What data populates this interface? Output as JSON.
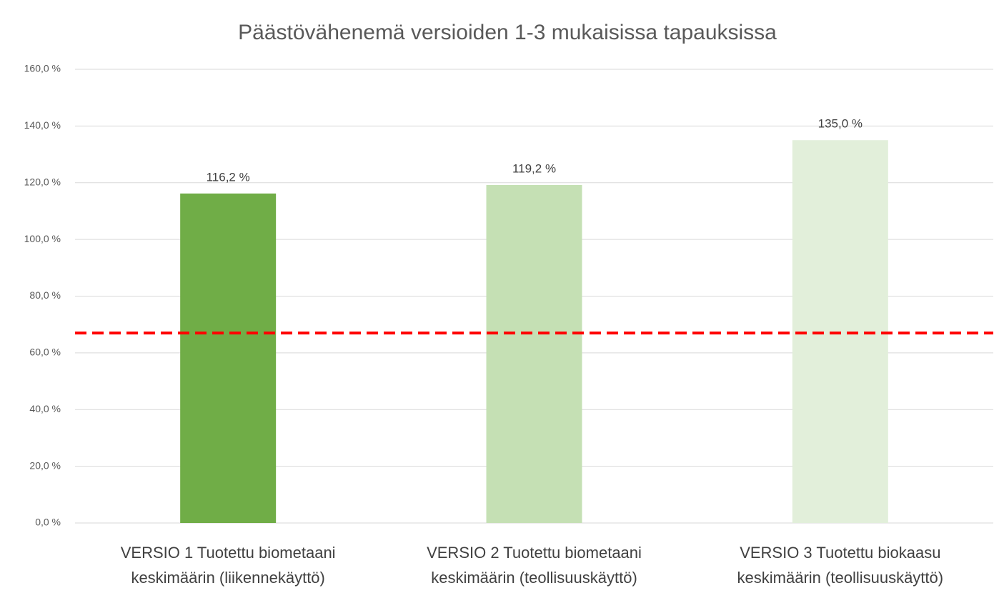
{
  "chart_data": {
    "type": "bar",
    "title": "Päästövähenemä versioiden 1-3 mukaisissa tapauksissa",
    "categories": [
      [
        "VERSIO 1 Tuotettu biometaani",
        "keskimäärin (liikennekäyttö)"
      ],
      [
        "VERSIO 2 Tuotettu biometaani",
        "keskimäärin (teollisuuskäyttö)"
      ],
      [
        "VERSIO 3 Tuotettu biokaasu",
        "keskimäärin (teollisuuskäyttö)"
      ]
    ],
    "values": [
      116.2,
      119.2,
      135.0
    ],
    "value_labels": [
      "116,2 %",
      "119,2 %",
      "135,0 %"
    ],
    "colors": [
      "#70ad47",
      "#c5e0b4",
      "#e2efda"
    ],
    "ylim": [
      0,
      160
    ],
    "yticks": [
      {
        "value": 0,
        "label": "0,0 %"
      },
      {
        "value": 20,
        "label": "20,0 %"
      },
      {
        "value": 40,
        "label": "40,0 %"
      },
      {
        "value": 60,
        "label": "60,0 %"
      },
      {
        "value": 80,
        "label": "80,0 %"
      },
      {
        "value": 100,
        "label": "100,0 %"
      },
      {
        "value": 120,
        "label": "120,0 %"
      },
      {
        "value": 140,
        "label": "140,0 %"
      },
      {
        "value": 160,
        "label": "160,0 %"
      }
    ],
    "grid": true,
    "reference_line": {
      "value": 67,
      "color": "#ff0000",
      "dashed": true
    }
  }
}
